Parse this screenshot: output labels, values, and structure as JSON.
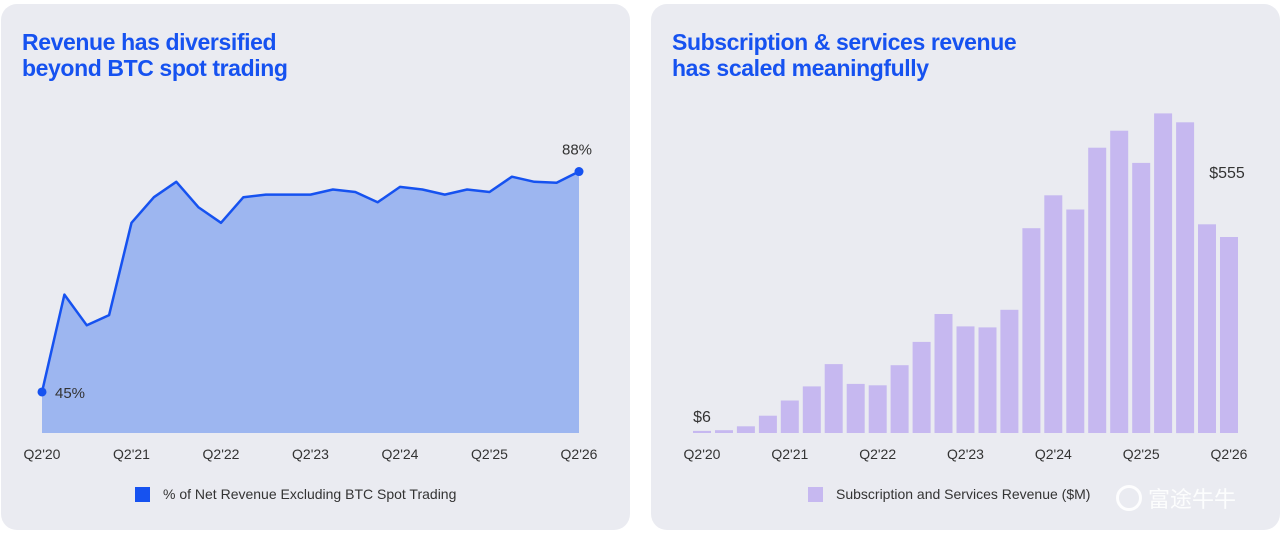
{
  "left_panel": {
    "title_line1": "Revenue has diversified",
    "title_line2": "beyond BTC spot trading",
    "legend_label": "% of Net Revenue Excluding BTC Spot Trading",
    "colors": {
      "line": "#1652f0",
      "fill": "#9db6f0"
    }
  },
  "right_panel": {
    "title_line1": "Subscription & services revenue",
    "title_line2": "has scaled meaningfully",
    "legend_label": "Subscription and Services Revenue ($M)",
    "colors": {
      "bar": "#c6b8f0"
    },
    "watermark": "富途牛牛"
  },
  "chart_data": [
    {
      "type": "area",
      "x": [
        "Q2'20",
        "Q3'20",
        "Q4'20",
        "Q1'21",
        "Q2'21",
        "Q3'21",
        "Q4'21",
        "Q1'22",
        "Q2'22",
        "Q3'22",
        "Q4'22",
        "Q1'23",
        "Q2'23",
        "Q3'23",
        "Q4'23",
        "Q1'24",
        "Q2'24",
        "Q3'24",
        "Q4'24",
        "Q1'25",
        "Q2'25",
        "Q3'25",
        "Q4'25",
        "Q1'26",
        "Q2'26"
      ],
      "tick_labels": [
        "Q2'20",
        "Q2'21",
        "Q2'22",
        "Q2'23",
        "Q2'24",
        "Q2'25",
        "Q2'26"
      ],
      "series": [
        {
          "values": [
            45,
            64,
            58,
            60,
            78,
            83,
            86,
            81,
            78,
            83,
            83.5,
            83.5,
            83.5,
            84.5,
            84,
            82,
            85,
            84.5,
            83.5,
            84.5,
            84,
            87,
            86,
            85.8,
            88
          ]
        }
      ],
      "annotations": [
        {
          "x": "Q2'20",
          "label": "45%"
        },
        {
          "x": "Q2'26",
          "label": "88%"
        }
      ],
      "ylim": [
        37,
        100
      ],
      "legend": "% of Net Revenue Excluding BTC Spot Trading",
      "legend_position": "bottom"
    },
    {
      "type": "bar",
      "categories": [
        "Q2'20",
        "Q3'20",
        "Q4'20",
        "Q1'21",
        "Q2'21",
        "Q3'21",
        "Q4'21",
        "Q1'22",
        "Q2'22",
        "Q3'22",
        "Q4'22",
        "Q1'23",
        "Q2'23",
        "Q3'23",
        "Q4'23",
        "Q1'24",
        "Q2'24",
        "Q3'24",
        "Q4'24",
        "Q1'25",
        "Q2'25",
        "Q3'25",
        "Q4'25",
        "Q1'26",
        "Q2'26"
      ],
      "tick_labels": [
        "Q2'20",
        "Q2'21",
        "Q2'22",
        "Q2'23",
        "Q2'24",
        "Q2'25",
        "Q2'26"
      ],
      "values": [
        6,
        8,
        19,
        49,
        92,
        132,
        195,
        139,
        135,
        192,
        258,
        337,
        302,
        299,
        349,
        580,
        673,
        633,
        808,
        856,
        765,
        905,
        880,
        591,
        555
      ],
      "annotations": [
        {
          "x": "Q2'20",
          "label": "$6"
        },
        {
          "x": "Q2'26",
          "label": "$555"
        }
      ],
      "ylim": [
        0,
        960
      ],
      "legend": "Subscription and Services Revenue ($M)",
      "legend_position": "bottom"
    }
  ]
}
